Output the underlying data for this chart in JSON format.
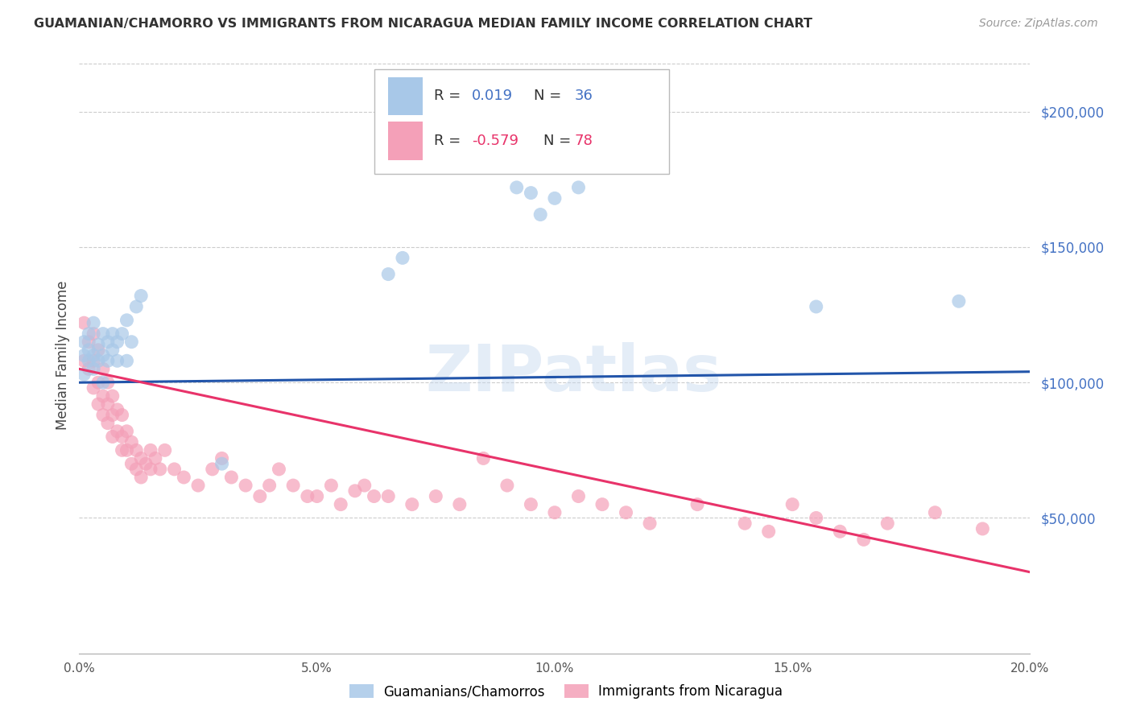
{
  "title": "GUAMANIAN/CHAMORRO VS IMMIGRANTS FROM NICARAGUA MEDIAN FAMILY INCOME CORRELATION CHART",
  "source": "Source: ZipAtlas.com",
  "ylabel": "Median Family Income",
  "ytick_labels": [
    "$50,000",
    "$100,000",
    "$150,000",
    "$200,000"
  ],
  "ytick_values": [
    50000,
    100000,
    150000,
    200000
  ],
  "ymin": 0,
  "ymax": 220000,
  "xmin": 0.0,
  "xmax": 0.2,
  "legend_blue_r": "0.019",
  "legend_blue_n": "36",
  "legend_pink_r": "-0.579",
  "legend_pink_n": "78",
  "legend_label_blue": "Guamanians/Chamorros",
  "legend_label_pink": "Immigrants from Nicaragua",
  "blue_color": "#a8c8e8",
  "pink_color": "#f4a0b8",
  "blue_line_color": "#2255aa",
  "pink_line_color": "#e8336a",
  "watermark": "ZIPatlas",
  "blue_points_x": [
    0.001,
    0.001,
    0.001,
    0.002,
    0.002,
    0.002,
    0.003,
    0.003,
    0.003,
    0.004,
    0.004,
    0.005,
    0.005,
    0.005,
    0.006,
    0.006,
    0.007,
    0.007,
    0.008,
    0.008,
    0.009,
    0.01,
    0.01,
    0.011,
    0.012,
    0.013,
    0.03,
    0.065,
    0.068,
    0.092,
    0.095,
    0.097,
    0.1,
    0.105,
    0.155,
    0.185
  ],
  "blue_points_y": [
    103000,
    110000,
    115000,
    108000,
    112000,
    118000,
    105000,
    110000,
    122000,
    108000,
    114000,
    100000,
    110000,
    118000,
    108000,
    115000,
    112000,
    118000,
    108000,
    115000,
    118000,
    123000,
    108000,
    115000,
    128000,
    132000,
    70000,
    140000,
    146000,
    172000,
    170000,
    162000,
    168000,
    172000,
    128000,
    130000
  ],
  "pink_points_x": [
    0.001,
    0.001,
    0.002,
    0.002,
    0.003,
    0.003,
    0.003,
    0.004,
    0.004,
    0.004,
    0.005,
    0.005,
    0.005,
    0.006,
    0.006,
    0.006,
    0.007,
    0.007,
    0.007,
    0.008,
    0.008,
    0.009,
    0.009,
    0.009,
    0.01,
    0.01,
    0.011,
    0.011,
    0.012,
    0.012,
    0.013,
    0.013,
    0.014,
    0.015,
    0.015,
    0.016,
    0.017,
    0.018,
    0.02,
    0.022,
    0.025,
    0.028,
    0.03,
    0.032,
    0.035,
    0.038,
    0.04,
    0.042,
    0.045,
    0.048,
    0.05,
    0.053,
    0.055,
    0.058,
    0.06,
    0.062,
    0.065,
    0.07,
    0.075,
    0.08,
    0.085,
    0.09,
    0.095,
    0.1,
    0.105,
    0.11,
    0.115,
    0.12,
    0.13,
    0.14,
    0.145,
    0.15,
    0.155,
    0.16,
    0.165,
    0.17,
    0.18,
    0.19
  ],
  "pink_points_y": [
    122000,
    108000,
    115000,
    105000,
    118000,
    98000,
    108000,
    112000,
    100000,
    92000,
    105000,
    95000,
    88000,
    100000,
    92000,
    85000,
    95000,
    88000,
    80000,
    90000,
    82000,
    88000,
    80000,
    75000,
    82000,
    75000,
    78000,
    70000,
    75000,
    68000,
    72000,
    65000,
    70000,
    75000,
    68000,
    72000,
    68000,
    75000,
    68000,
    65000,
    62000,
    68000,
    72000,
    65000,
    62000,
    58000,
    62000,
    68000,
    62000,
    58000,
    58000,
    62000,
    55000,
    60000,
    62000,
    58000,
    58000,
    55000,
    58000,
    55000,
    72000,
    62000,
    55000,
    52000,
    58000,
    55000,
    52000,
    48000,
    55000,
    48000,
    45000,
    55000,
    50000,
    45000,
    42000,
    48000,
    52000,
    46000
  ],
  "blue_trend_x": [
    0.0,
    0.2
  ],
  "blue_trend_y": [
    100000,
    104000
  ],
  "pink_trend_x": [
    0.0,
    0.2
  ],
  "pink_trend_y": [
    105000,
    30000
  ]
}
